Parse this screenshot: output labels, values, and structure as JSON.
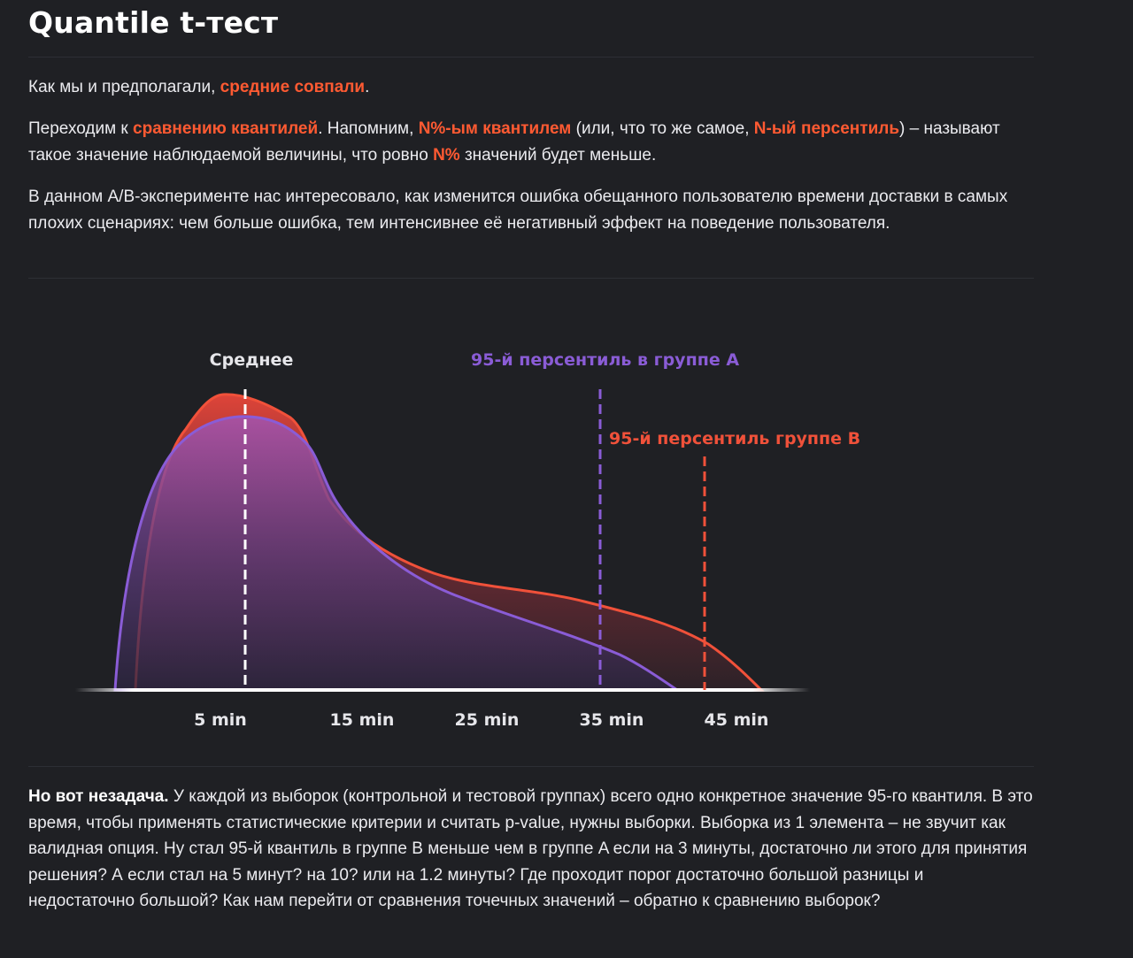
{
  "title": "Quantile t-тест",
  "p1": {
    "t1": "Как мы и предполагали, ",
    "h1": "средние совпали",
    "t2": "."
  },
  "p2": {
    "t1": "Переходим к ",
    "h1": "сравнению квантилей",
    "t2": ". Напомним, ",
    "h2": "N%-ым квантилем",
    "t3": " (или, что то же самое, ",
    "h3": "N-ый персентиль",
    "t4": ") – называют такое значение наблюдаемой величины, что ровно ",
    "h4": "N%",
    "t5": " значений будет меньше."
  },
  "p3": "В данном A/B-эксперименте нас интересовало, как изменится ошибка обещанного пользователю времени доставки в самых плохих сценариях: чем больше ошибка, тем интенсивнее её негативный эффект на поведение пользователя.",
  "figure": {
    "label_mean": "Среднее",
    "label_p95_a": "95-й персентиль в группе A",
    "label_p95_b": "95-й персентиль группе B",
    "ticks": [
      "5 min",
      "15 min",
      "25 min",
      "35 min",
      "45 min"
    ],
    "colors": {
      "group_a": "#8a5cd6",
      "group_b": "#f0513a",
      "mean": "#ffffff"
    }
  },
  "p4": {
    "lead": "Но вот незадача.",
    "text": " У каждой из выборок (контрольной и тестовой группах) всего одно конкретное значение 95-го квантиля. В это время, чтобы применять статистические критерии и считать p-value, нужны выборки. Выборка из 1 элемента – не звучит как валидная опция. Ну стал 95-й квантиль в группе B меньше чем в группе A если на 3 минуты, достаточно ли этого для принятия решения? А если стал на 5 минут? на 10? или на 1.2 минуты? Где проходит порог достаточно большой разницы и недостаточно большой? Как нам перейти от сравнения точечных значений – обратно к сравнению выборок?"
  }
}
